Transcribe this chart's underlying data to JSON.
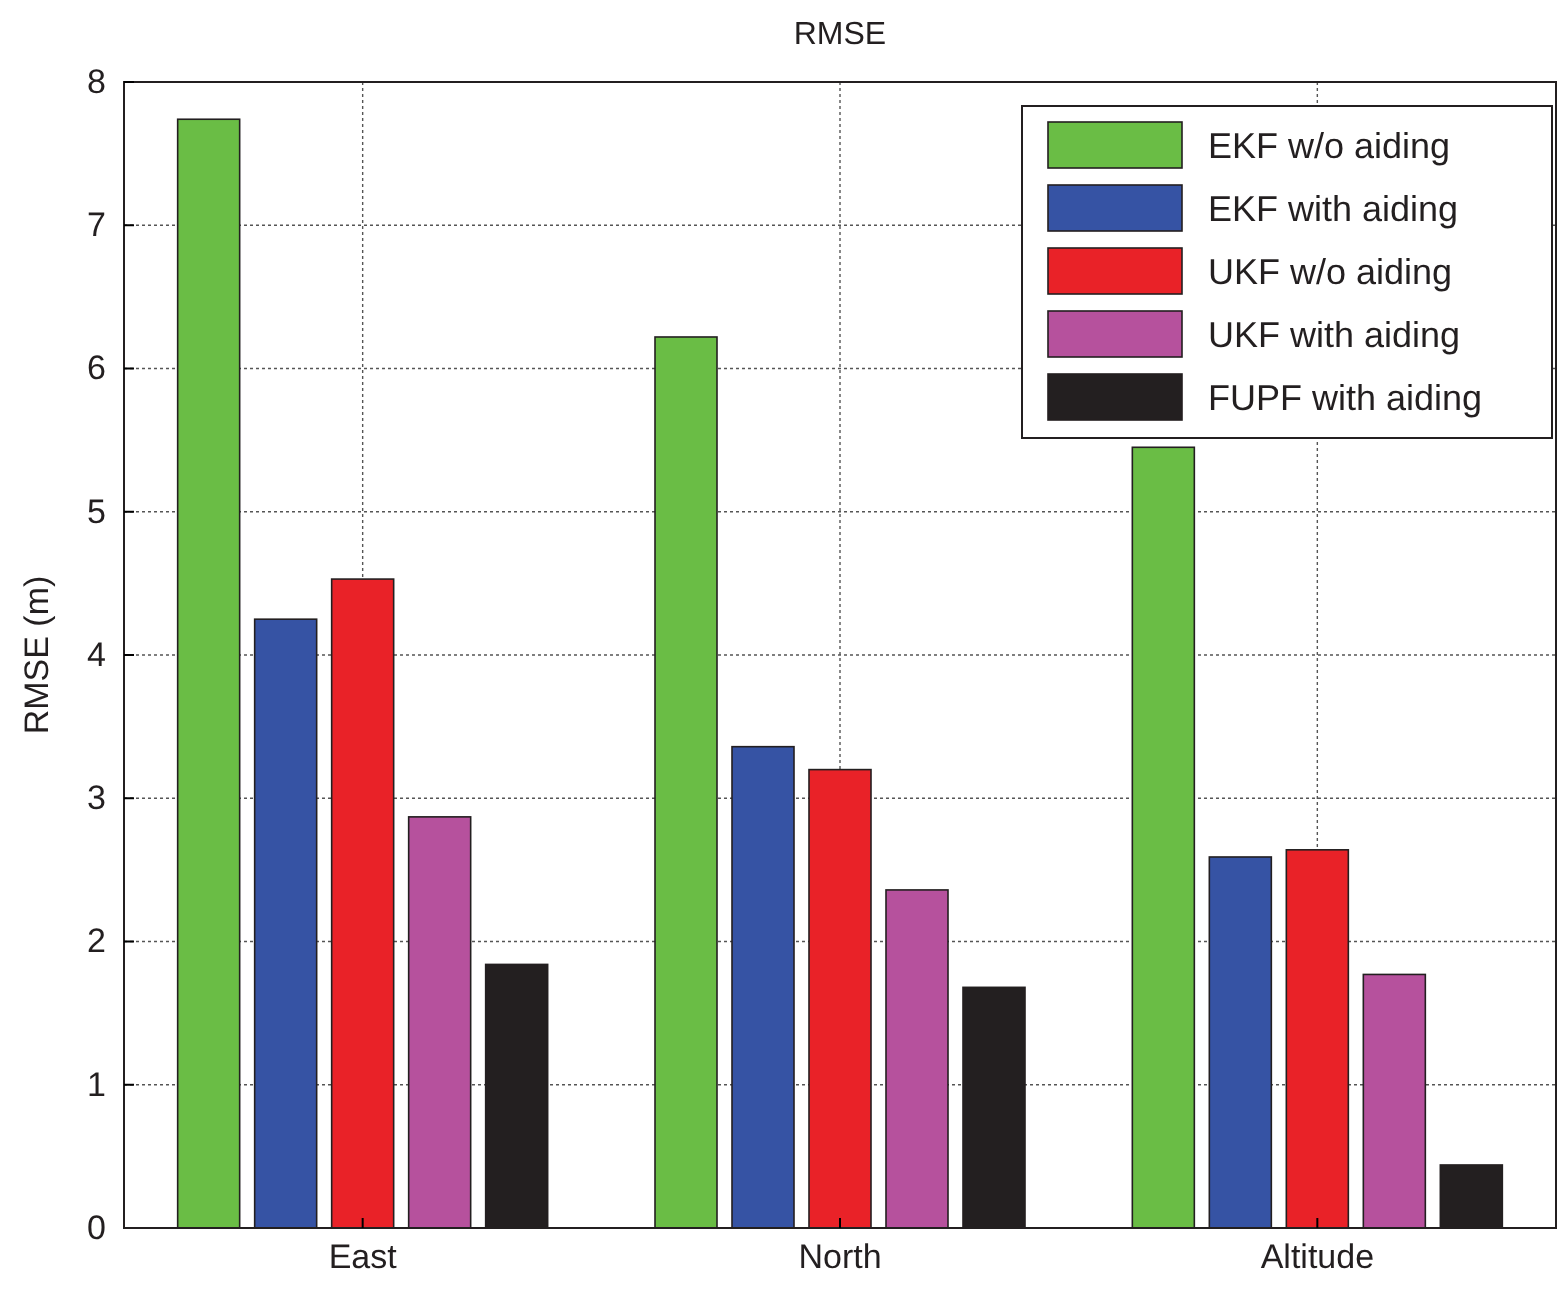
{
  "chart_data": {
    "type": "bar",
    "title": "RMSE",
    "ylabel": "RMSE (m)",
    "categories": [
      "East",
      "North",
      "Altitude"
    ],
    "series": [
      {
        "name": "EKF w/o aiding",
        "color": "#6abd45",
        "values": [
          7.74,
          6.22,
          5.45
        ]
      },
      {
        "name": "EKF with aiding",
        "color": "#3653a4",
        "values": [
          4.25,
          3.36,
          2.59
        ]
      },
      {
        "name": "UKF w/o aiding",
        "color": "#e92228",
        "values": [
          4.53,
          3.2,
          2.64
        ]
      },
      {
        "name": "UKF with aiding",
        "color": "#b6519d",
        "values": [
          2.87,
          2.36,
          1.77
        ]
      },
      {
        "name": "FUPF with aiding",
        "color": "#231f20",
        "values": [
          1.84,
          1.68,
          0.44
        ]
      }
    ],
    "ylim": [
      0,
      8
    ],
    "yticks": [
      0,
      1,
      2,
      3,
      4,
      5,
      6,
      7,
      8
    ],
    "grid": true,
    "legend": "top right"
  }
}
